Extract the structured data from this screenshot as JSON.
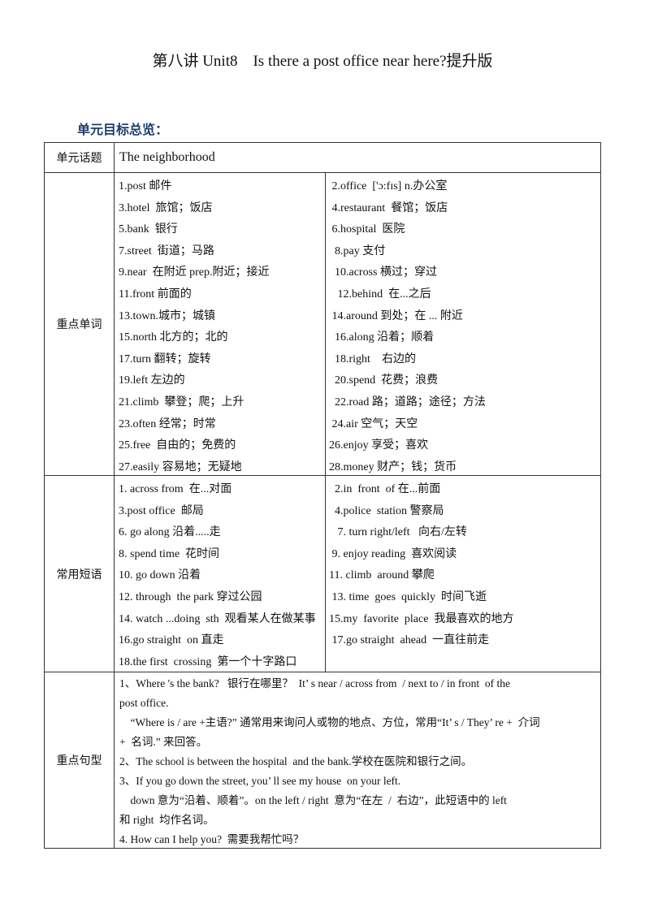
{
  "title": "第八讲 Unit8　Is there a post office near here?提升版",
  "heading": "单元目标总览：",
  "topic": {
    "label": "单元话题",
    "value": "The neighborhood"
  },
  "words": {
    "label": "重点单词",
    "left": [
      "1.post 邮件",
      "3.hotel  旅馆；饭店",
      "5.bank  银行",
      "7.street  街道；马路",
      "9.near  在附近 prep.附近；接近",
      "11.front 前面的",
      "13.town.城市；城镇",
      "15.north 北方的；北的",
      "17.turn 翻转；旋转",
      "19.left 左边的",
      "21.climb  攀登；爬；上升",
      "23.often 经常；时常",
      "25.free  自由的；免费的",
      "27.easily 容易地；无疑地"
    ],
    "right": [
      " 2.office  ['ɔ:fɪs] n.办公室",
      " 4.restaurant  餐馆；饭店",
      " 6.hospital  医院",
      "  8.pay 支付",
      "  10.across 横过；穿过",
      "   12.behind  在...之后",
      " 14.around 到处；在 ... 附近",
      "  16.along 沿着；顺着",
      "  18.right    右边的",
      "  20.spend  花费；浪费",
      "  22.road 路；道路；途径；方法",
      " 24.air 空气；天空",
      "26.enjoy 享受；喜欢",
      "28.money 财产；钱；货币"
    ]
  },
  "phrases": {
    "label": "常用短语",
    "left": [
      "1. across from  在...对面",
      "3.post office  邮局",
      "6. go along 沿着.....走",
      "8. spend time  花时间",
      "10. go down 沿着",
      "12. through  the park 穿过公园",
      "14. watch ...doing  sth  观看某人在做某事",
      "16.go straight  on 直走",
      "18.the first  crossing  第一个十字路口"
    ],
    "right": [
      "  2.in  front  of 在...前面",
      "  4.police  station 警察局",
      "   7. turn right/left   向右/左转",
      " 9. enjoy reading  喜欢阅读",
      "11. climb  around 攀爬",
      " 13. time  goes  quickly  时间飞逝",
      "15.my  favorite  place  我最喜欢的地方",
      " 17.go straight  ahead  一直往前走"
    ]
  },
  "sentences": {
    "label": "重点句型",
    "lines": [
      "1、Where 's the bank?   银行在哪里？  It’ s near / across from  / next to / in front  of the",
      "post office.",
      "    “Where is / are +主语?” 通常用来询问人或物的地点、方位，常用“It’ s / They’ re +  介词",
      "+  名词.” 来回答。",
      "2、The school is between the hospital  and the bank.学校在医院和银行之间。",
      "3、If you go down the street, you’ ll see my house  on your left.",
      "    down 意为“沿着、顺着”。on the left / right  意为“在左  /  右边”，此短语中的 left",
      "和 right  均作名词。",
      "4. How can I help you?  需要我帮忙吗？"
    ]
  }
}
